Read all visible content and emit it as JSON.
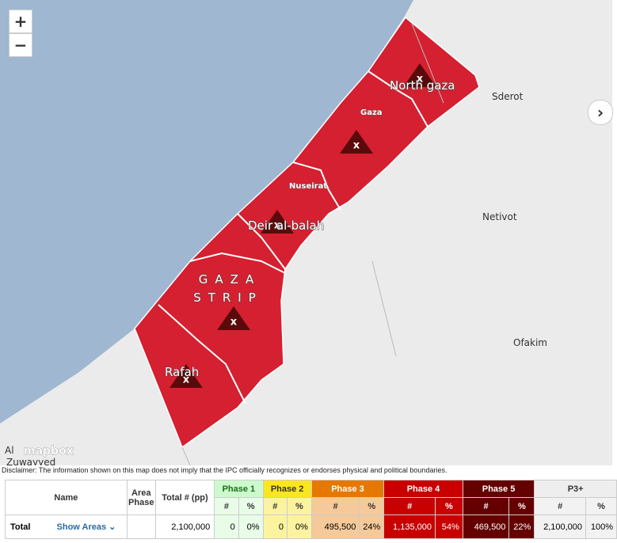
{
  "map": {
    "zoom_in": "+",
    "zoom_out": "−",
    "next": "›",
    "marker_symbol": "x",
    "labels": {
      "north_gaza": "North gaza",
      "gaza": "Gaza",
      "nuseirat": "Nuseirat",
      "deir_al_balah": "Deir al-balah",
      "strip_line1": "GAZA",
      "strip_line2": "STRIP",
      "rafah": "Rafah",
      "sderot": "Sderot",
      "netivot": "Netivot",
      "ofakim": "Ofakim",
      "zuwayyed": "Zuwayyed",
      "al": "Al"
    },
    "attribution": "mapbox"
  },
  "disclaimer": "Disclaimer: The information shown on this map does not imply that the IPC officially recognizes or endorses physical and political boundaries.",
  "table": {
    "headers": [
      "Name",
      "Area Phase",
      "Total # (pp)",
      "Phase 1",
      "Phase 2",
      "Phase 3",
      "Phase 4",
      "Phase 5",
      "P3+"
    ],
    "subheaders": [
      "#",
      "%",
      "#",
      "%",
      "#",
      "%",
      "#",
      "%",
      "#",
      "%",
      "#",
      "%"
    ],
    "row": {
      "name": "Total",
      "link": "Show Areas",
      "total": "2,100,000",
      "cells": [
        "0",
        "0%",
        "0",
        "0%",
        "495,500",
        "24%",
        "1,135,000",
        "54%",
        "469,500",
        "22%",
        "2,100,000",
        "100%"
      ]
    }
  }
}
